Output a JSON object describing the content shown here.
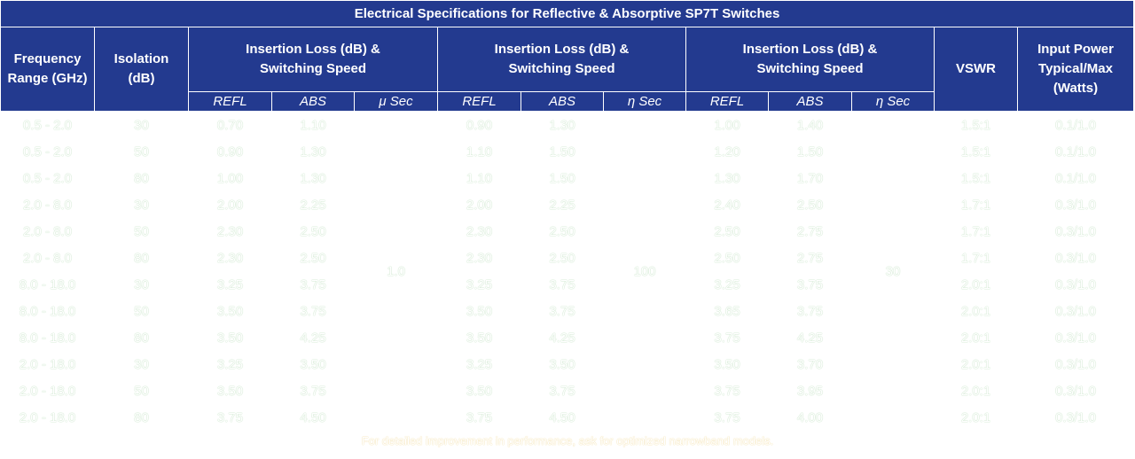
{
  "title": "Electrical Specifications for Reflective & Absorptive SP7T Switches",
  "headers": [
    "Frequency Range (GHz)",
    "Isolation (dB)",
    "Insertion Loss (dB) & Switching Speed",
    "Insertion Loss (dB) & Switching Speed",
    "Insertion Loss (dB) & Switching Speed",
    "VSWR",
    "Input Power Typical/Max (Watts)"
  ],
  "subheaders": [
    "REFL",
    "ABS",
    "μ Sec",
    "REFL",
    "ABS",
    "η Sec",
    "REFL",
    "ABS",
    "η Sec"
  ],
  "speeds": [
    "1.0",
    "100",
    "30"
  ],
  "rows": [
    [
      "0.5 - 2.0",
      "30",
      "0.70",
      "1.10",
      "0.90",
      "1.30",
      "1.00",
      "1.40",
      "1.5:1",
      "0.1/1.0"
    ],
    [
      "0.5 - 2.0",
      "50",
      "0.90",
      "1.30",
      "1.10",
      "1.50",
      "1.20",
      "1.50",
      "1.5:1",
      "0.1/1.0"
    ],
    [
      "0.5 - 2.0",
      "80",
      "1.00",
      "1.30",
      "1.10",
      "1.50",
      "1.30",
      "1.70",
      "1.5:1",
      "0.1/1.0"
    ],
    [
      "2.0 - 8.0",
      "30",
      "2.00",
      "2.25",
      "2.00",
      "2.25",
      "2.40",
      "2.50",
      "1.7:1",
      "0.3/1.0"
    ],
    [
      "2.0 - 8.0",
      "50",
      "2.30",
      "2.50",
      "2.30",
      "2.50",
      "2.50",
      "2.75",
      "1.7:1",
      "0.3/1.0"
    ],
    [
      "2.0 - 8.0",
      "80",
      "2.30",
      "2.50",
      "2.30",
      "2.50",
      "2.50",
      "2.75",
      "1.7:1",
      "0.3/1.0"
    ],
    [
      "8.0 - 18.0",
      "30",
      "3.25",
      "3.75",
      "3.25",
      "3.75",
      "3.25",
      "3.75",
      "2.0:1",
      "0.3/1.0"
    ],
    [
      "8.0 - 18.0",
      "50",
      "3.50",
      "3.75",
      "3.50",
      "3.75",
      "3.65",
      "3.75",
      "2.0:1",
      "0.3/1.0"
    ],
    [
      "8.0 - 18.0",
      "80",
      "3.50",
      "4.25",
      "3.50",
      "4.25",
      "3.75",
      "4.25",
      "2.0:1",
      "0.3/1.0"
    ],
    [
      "2.0 - 18.0",
      "30",
      "3.25",
      "3.50",
      "3.25",
      "3.50",
      "3.50",
      "3.70",
      "2.0:1",
      "0.3/1.0"
    ],
    [
      "2.0 - 18.0",
      "50",
      "3.50",
      "3.75",
      "3.50",
      "3.75",
      "3.75",
      "3.95",
      "2.0:1",
      "0.3/1.0"
    ],
    [
      "2.0 - 18.0",
      "80",
      "3.75",
      "4.50",
      "3.75",
      "4.50",
      "3.75",
      "4.00",
      "2.0:1",
      "0.3/1.0"
    ]
  ],
  "footnote": "For detailed improvement in performance, ask for optimized narrowband models."
}
